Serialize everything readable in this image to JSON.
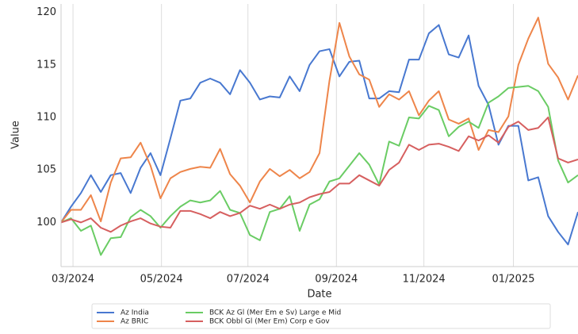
{
  "chart_data": {
    "type": "line",
    "x_label": "Date",
    "y_label": "Value",
    "x": [
      0,
      1,
      2,
      3,
      4,
      5,
      6,
      7,
      8,
      9,
      10,
      11,
      12,
      13,
      14,
      15,
      16,
      17,
      18,
      19,
      20,
      21,
      22,
      23,
      24,
      25,
      26,
      27,
      28,
      29,
      30,
      31,
      32,
      33,
      34,
      35,
      36,
      37,
      38,
      39,
      40,
      41,
      42,
      43,
      44,
      45,
      46,
      47,
      48,
      49,
      50,
      51,
      52
    ],
    "xlim": [
      0,
      52
    ],
    "xticks": [
      {
        "value": 1.2,
        "label": "03/2024"
      },
      {
        "value": 10.1,
        "label": "05/2024"
      },
      {
        "value": 18.8,
        "label": "07/2024"
      },
      {
        "value": 27.7,
        "label": "09/2024"
      },
      {
        "value": 36.5,
        "label": "11/2024"
      },
      {
        "value": 45.5,
        "label": "01/2025"
      }
    ],
    "ylim": [
      95.8,
      120.8
    ],
    "yticks": [
      100,
      105,
      110,
      115,
      120
    ],
    "grid": "x",
    "legend": "bottom",
    "series": [
      {
        "name": "Az India",
        "color": "#4878d0",
        "values": [
          100,
          101.5,
          102.8,
          104.5,
          102.9,
          104.5,
          104.7,
          102.8,
          105.2,
          106.6,
          104.5,
          108,
          111.6,
          111.8,
          113.3,
          113.7,
          113.3,
          112.2,
          114.5,
          113.3,
          111.7,
          112,
          111.9,
          113.9,
          112.5,
          115,
          116.3,
          116.5,
          113.9,
          115.3,
          115.4,
          111.8,
          111.8,
          112.5,
          112.4,
          115.5,
          115.5,
          118,
          118.8,
          116,
          115.7,
          117.8,
          113,
          111.2,
          107.4,
          109.2,
          109.2,
          104,
          104.3,
          100.6,
          99.1,
          97.9,
          101
        ]
      },
      {
        "name": "Az BRIC",
        "color": "#ee854a",
        "values": [
          100,
          101.2,
          101.2,
          102.6,
          100.1,
          103.8,
          106.1,
          106.2,
          107.6,
          105.4,
          102.3,
          104.2,
          104.8,
          105.1,
          105.3,
          105.2,
          107,
          104.6,
          103.5,
          101.9,
          103.9,
          105.1,
          104.4,
          105,
          104.2,
          104.8,
          106.6,
          113.5,
          119,
          115.8,
          114.1,
          113.6,
          111,
          112.2,
          111.7,
          112.5,
          110.2,
          111.6,
          112.5,
          109.8,
          109.4,
          109.9,
          106.9,
          108.8,
          108.6,
          110.1,
          115,
          117.5,
          119.5,
          115.1,
          113.8,
          111.7,
          114
        ]
      },
      {
        "name": "BCK Az Gl (Mer Em e Sv) Large e Mid",
        "color": "#6acc64",
        "values": [
          100,
          100.4,
          99.2,
          99.7,
          96.9,
          98.5,
          98.6,
          100.5,
          101.2,
          100.6,
          99.5,
          100.6,
          101.5,
          102.1,
          101.9,
          102.1,
          103,
          101.2,
          100.9,
          98.8,
          98.3,
          101,
          101.3,
          102.5,
          99.2,
          101.7,
          102.2,
          103.9,
          104.2,
          105.4,
          106.6,
          105.5,
          103.6,
          107.7,
          107.3,
          110,
          109.9,
          111.1,
          110.7,
          108.2,
          109.1,
          109.6,
          109,
          111.4,
          112,
          112.8,
          112.9,
          113,
          112.5,
          111,
          105.9,
          103.8,
          104.5
        ]
      },
      {
        "name": "BCK Obbl Gl (Mer Em) Corp e Gov",
        "color": "#d65f5f",
        "values": [
          100,
          100.3,
          100,
          100.4,
          99.5,
          99.1,
          99.7,
          100.1,
          100.4,
          99.9,
          99.6,
          99.5,
          101.1,
          101.1,
          100.8,
          100.4,
          101,
          100.6,
          100.9,
          101.6,
          101.3,
          101.7,
          101.3,
          101.7,
          101.9,
          102.4,
          102.7,
          102.9,
          103.7,
          103.7,
          104.5,
          104,
          103.5,
          105,
          105.7,
          107.4,
          106.9,
          107.4,
          107.5,
          107.2,
          106.8,
          108.2,
          107.8,
          108.3,
          107.6,
          109.1,
          109.6,
          108.8,
          109,
          110,
          106.1,
          105.7,
          106
        ]
      }
    ]
  }
}
